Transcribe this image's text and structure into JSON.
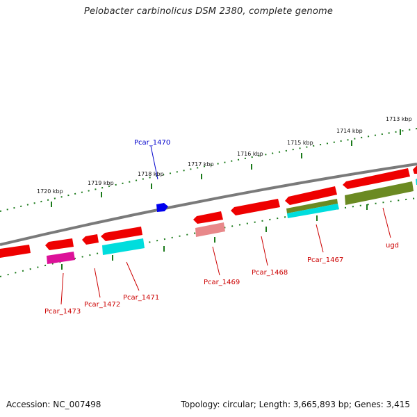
{
  "header": {
    "title": "Pelobacter carbinolicus DSM 2380, complete genome"
  },
  "footer": {
    "accession": "Accession: NC_007498",
    "summary": "Topology: circular; Length: 3,665,893 bp; Genes: 3,415"
  },
  "colors": {
    "backbone": "#7a7a7a",
    "gene_red": "#ee0000",
    "gene_pink": "#e8888a",
    "gene_magenta": "#dd1199",
    "gene_cyan": "#00dddd",
    "gene_olive": "#6b8a22",
    "gene_blue": "#0000ee",
    "tick_green": "#1a7a1a",
    "label_red": "#cc0000",
    "label_blue": "#0000cc"
  },
  "scale_labels": [
    "1720 kbp",
    "1719 kbp",
    "1718 kbp",
    "1717 kbp",
    "1716 kbp",
    "1715 kbp",
    "1714 kbp",
    "1713 kbp"
  ],
  "gene_labels": [
    {
      "id": "Pcar_1470",
      "strand": "forward",
      "color": "blue"
    },
    {
      "id": "Pcar_1473",
      "strand": "reverse",
      "color": "red"
    },
    {
      "id": "Pcar_1472",
      "strand": "reverse",
      "color": "red"
    },
    {
      "id": "Pcar_1471",
      "strand": "reverse",
      "color": "red"
    },
    {
      "id": "Pcar_1469",
      "strand": "reverse",
      "color": "red"
    },
    {
      "id": "Pcar_1468",
      "strand": "reverse",
      "color": "red"
    },
    {
      "id": "Pcar_1467",
      "strand": "reverse",
      "color": "red"
    },
    {
      "id": "ugd",
      "strand": "reverse",
      "color": "red"
    }
  ]
}
